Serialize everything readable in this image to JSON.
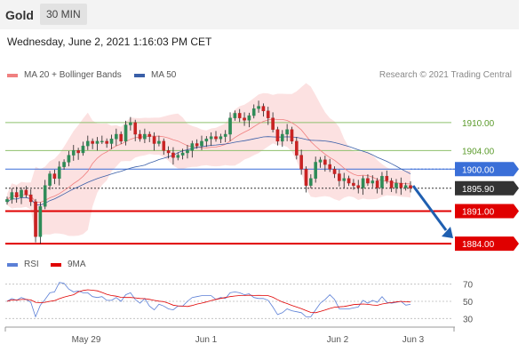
{
  "header": {
    "asset": "Gold",
    "timeframe": "30 MIN"
  },
  "timestamp": "Wednesday, June 2, 2021 1:16:03 PM CET",
  "legend": {
    "items": [
      {
        "label": "MA 20 + Bollinger Bands",
        "color": "#f08080"
      },
      {
        "label": "MA 50",
        "color": "#3a5fa8"
      }
    ],
    "copyright": "Research © 2021 Trading Central"
  },
  "rsi_legend": {
    "items": [
      {
        "label": "RSI",
        "color": "#5b7fd6"
      },
      {
        "label": "9MA",
        "color": "#e00000"
      }
    ]
  },
  "price_levels": [
    {
      "value": "1910.00",
      "kind": "resistance",
      "color": "#8ec06c"
    },
    {
      "value": "1904.00",
      "kind": "resistance",
      "color": "#8ec06c"
    },
    {
      "value": "1900.00",
      "kind": "pivot",
      "color": "#3a6fd8"
    },
    {
      "value": "1895.90",
      "kind": "last",
      "color": "#333333"
    },
    {
      "value": "1891.00",
      "kind": "support",
      "color": "#e00000"
    },
    {
      "value": "1884.00",
      "kind": "support",
      "color": "#e00000"
    }
  ],
  "rsi_levels": [
    "70",
    "50",
    "30"
  ],
  "x_axis": [
    "May 29",
    "Jun 1",
    "Jun 2",
    "Jun 3"
  ],
  "chart_data": {
    "type": "candlestick",
    "instrument": "Gold",
    "timeframe": "30 MIN",
    "x_ticks": [
      "May 29",
      "Jun 1",
      "Jun 2",
      "Jun 3"
    ],
    "horizontal_levels": [
      1910.0,
      1904.0,
      1900.0,
      1895.9,
      1891.0,
      1884.0
    ],
    "close": [
      1893.5,
      1895.0,
      1894.0,
      1895.5,
      1894.5,
      1893.0,
      1885.5,
      1892.0,
      1896.5,
      1899.0,
      1898.0,
      1900.5,
      1901.5,
      1903.0,
      1904.0,
      1903.5,
      1905.0,
      1906.0,
      1905.5,
      1906.0,
      1906.0,
      1905.5,
      1906.5,
      1907.5,
      1906.0,
      1909.5,
      1910.0,
      1907.5,
      1906.5,
      1907.5,
      1907.0,
      1905.5,
      1906.0,
      1904.0,
      1903.5,
      1902.5,
      1903.0,
      1903.5,
      1904.0,
      1905.5,
      1905.0,
      1906.0,
      1906.5,
      1907.0,
      1906.5,
      1907.0,
      1907.5,
      1911.0,
      1912.0,
      1911.0,
      1910.5,
      1911.5,
      1913.0,
      1913.5,
      1912.5,
      1911.0,
      1908.5,
      1906.0,
      1907.5,
      1908.5,
      1906.0,
      1903.0,
      1900.0,
      1896.5,
      1898.0,
      1901.5,
      1902.0,
      1901.0,
      1900.0,
      1899.0,
      1897.5,
      1898.0,
      1897.0,
      1896.5,
      1896.0,
      1898.0,
      1897.0,
      1897.5,
      1896.0,
      1898.5,
      1897.5,
      1896.0,
      1897.0,
      1896.0,
      1896.5,
      1895.9
    ],
    "ylim": [
      1882.5,
      1918.0
    ],
    "rsi": {
      "levels": [
        70,
        50,
        30
      ]
    }
  }
}
